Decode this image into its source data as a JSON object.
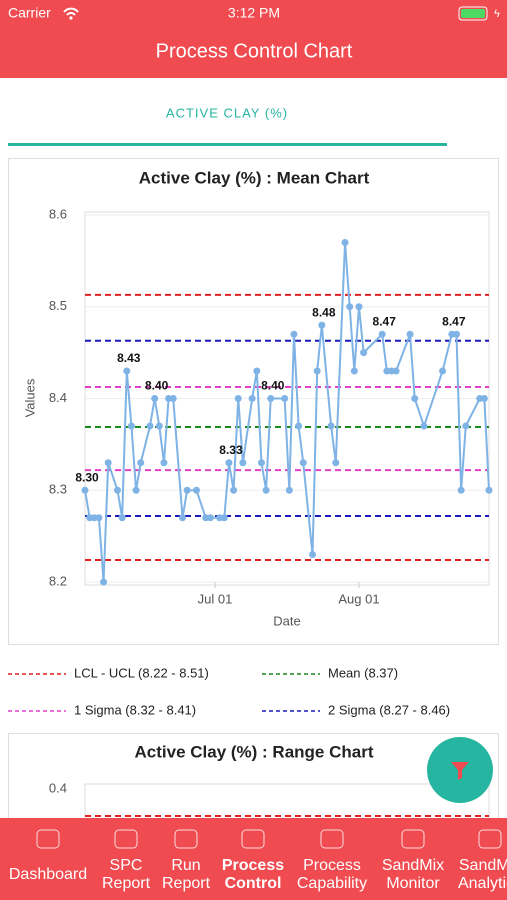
{
  "status_bar": {
    "carrier": "Carrier",
    "time": "3:12 PM"
  },
  "header": {
    "title": "Process Control Chart"
  },
  "tab": {
    "label": "ACTIVE CLAY (%)"
  },
  "chart_data": {
    "type": "line",
    "title": "Active Clay (%) : Mean Chart",
    "x_label": "Date",
    "y_label": "Values",
    "x": [
      "Jun 03",
      "Jun 04",
      "Jun 05",
      "Jun 06",
      "Jun 07",
      "Jun 08",
      "Jun 10",
      "Jun 11",
      "Jun 12",
      "Jun 13",
      "Jun 14",
      "Jun 15",
      "Jun 17",
      "Jun 18",
      "Jun 19",
      "Jun 20",
      "Jun 21",
      "Jun 22",
      "Jun 24",
      "Jun 25",
      "Jun 27",
      "Jun 29",
      "Jun 30",
      "Jul 02",
      "Jul 03",
      "Jul 04",
      "Jul 05",
      "Jul 06",
      "Jul 07",
      "Jul 09",
      "Jul 10",
      "Jul 11",
      "Jul 12",
      "Jul 13",
      "Jul 16",
      "Jul 17",
      "Jul 18",
      "Jul 19",
      "Jul 20",
      "Jul 22",
      "Jul 23",
      "Jul 24",
      "Jul 26",
      "Jul 27",
      "Jul 29",
      "Jul 30",
      "Jul 31",
      "Aug 01",
      "Aug 02",
      "Aug 06",
      "Aug 07",
      "Aug 08",
      "Aug 09",
      "Aug 12",
      "Aug 13",
      "Aug 15",
      "Aug 19",
      "Aug 21",
      "Aug 22",
      "Aug 23",
      "Aug 24",
      "Aug 27",
      "Aug 28",
      "Aug 29"
    ],
    "series": [
      {
        "name": "Mean",
        "color": "#7fb3e6",
        "values": [
          8.3,
          8.27,
          8.27,
          8.27,
          8.2,
          8.33,
          8.3,
          8.27,
          8.43,
          8.37,
          8.3,
          8.33,
          8.37,
          8.4,
          8.37,
          8.33,
          8.4,
          8.4,
          8.27,
          8.3,
          8.3,
          8.27,
          8.27,
          8.27,
          8.27,
          8.33,
          8.3,
          8.4,
          8.33,
          8.4,
          8.43,
          8.33,
          8.3,
          8.4,
          8.4,
          8.3,
          8.47,
          8.37,
          8.33,
          8.23,
          8.43,
          8.48,
          8.37,
          8.33,
          8.57,
          8.5,
          8.43,
          8.5,
          8.45,
          8.47,
          8.43,
          8.43,
          8.43,
          8.47,
          8.4,
          8.37,
          8.43,
          8.47,
          8.47,
          8.3,
          8.37,
          8.4,
          8.4,
          8.3
        ],
        "value_labels": [
          "8.30",
          null,
          null,
          null,
          null,
          null,
          null,
          null,
          "8.43",
          null,
          null,
          null,
          null,
          "8.40",
          null,
          null,
          null,
          null,
          null,
          null,
          null,
          null,
          null,
          null,
          null,
          "8.33",
          null,
          null,
          null,
          null,
          null,
          null,
          null,
          "8.40",
          null,
          null,
          null,
          null,
          null,
          null,
          null,
          "8.48",
          null,
          null,
          null,
          null,
          null,
          null,
          null,
          "8.47",
          null,
          null,
          null,
          null,
          null,
          null,
          null,
          "8.47",
          null,
          null,
          null,
          null,
          null,
          null
        ]
      }
    ],
    "reference_lines": [
      {
        "value": 8.513,
        "color": "#e02020"
      },
      {
        "value": 8.224,
        "color": "#e02020"
      },
      {
        "value": 8.369,
        "color": "#1a8a1a"
      },
      {
        "value": 8.4125,
        "color": "#e040c8"
      },
      {
        "value": 8.322,
        "color": "#e040c8"
      },
      {
        "value": 8.463,
        "color": "#1a1ab8"
      },
      {
        "value": 8.272,
        "color": "#1a1ab8"
      }
    ],
    "legend": [
      {
        "label": "LCL - UCL (8.22 - 8.51)",
        "color": "#e02020"
      },
      {
        "label": "Mean (8.37)",
        "color": "#1a8a1a"
      },
      {
        "label": "1 Sigma (8.32 - 8.41)",
        "color": "#e040c8"
      },
      {
        "label": "2 Sigma (8.27 - 8.46)",
        "color": "#1a1ab8"
      }
    ],
    "xlim": [
      "Jun 03",
      "Aug 29"
    ],
    "xticks": [
      "Jul 01",
      "Aug 01"
    ],
    "ylim": [
      8.2,
      8.6
    ],
    "yticks": [
      8.2,
      8.3,
      8.4,
      8.5,
      8.6
    ],
    "grid": true
  },
  "range_chart": {
    "title": "Active Clay (%) : Range Chart",
    "yticks": [
      0.4
    ]
  },
  "nav": [
    {
      "label": "Dashboard"
    },
    {
      "label": "SPC Report"
    },
    {
      "label": "Run Report"
    },
    {
      "label": "Process Control"
    },
    {
      "label": "Process Capability"
    },
    {
      "label": "SandMix Monitor"
    },
    {
      "label": "SandMix Analytics"
    }
  ]
}
